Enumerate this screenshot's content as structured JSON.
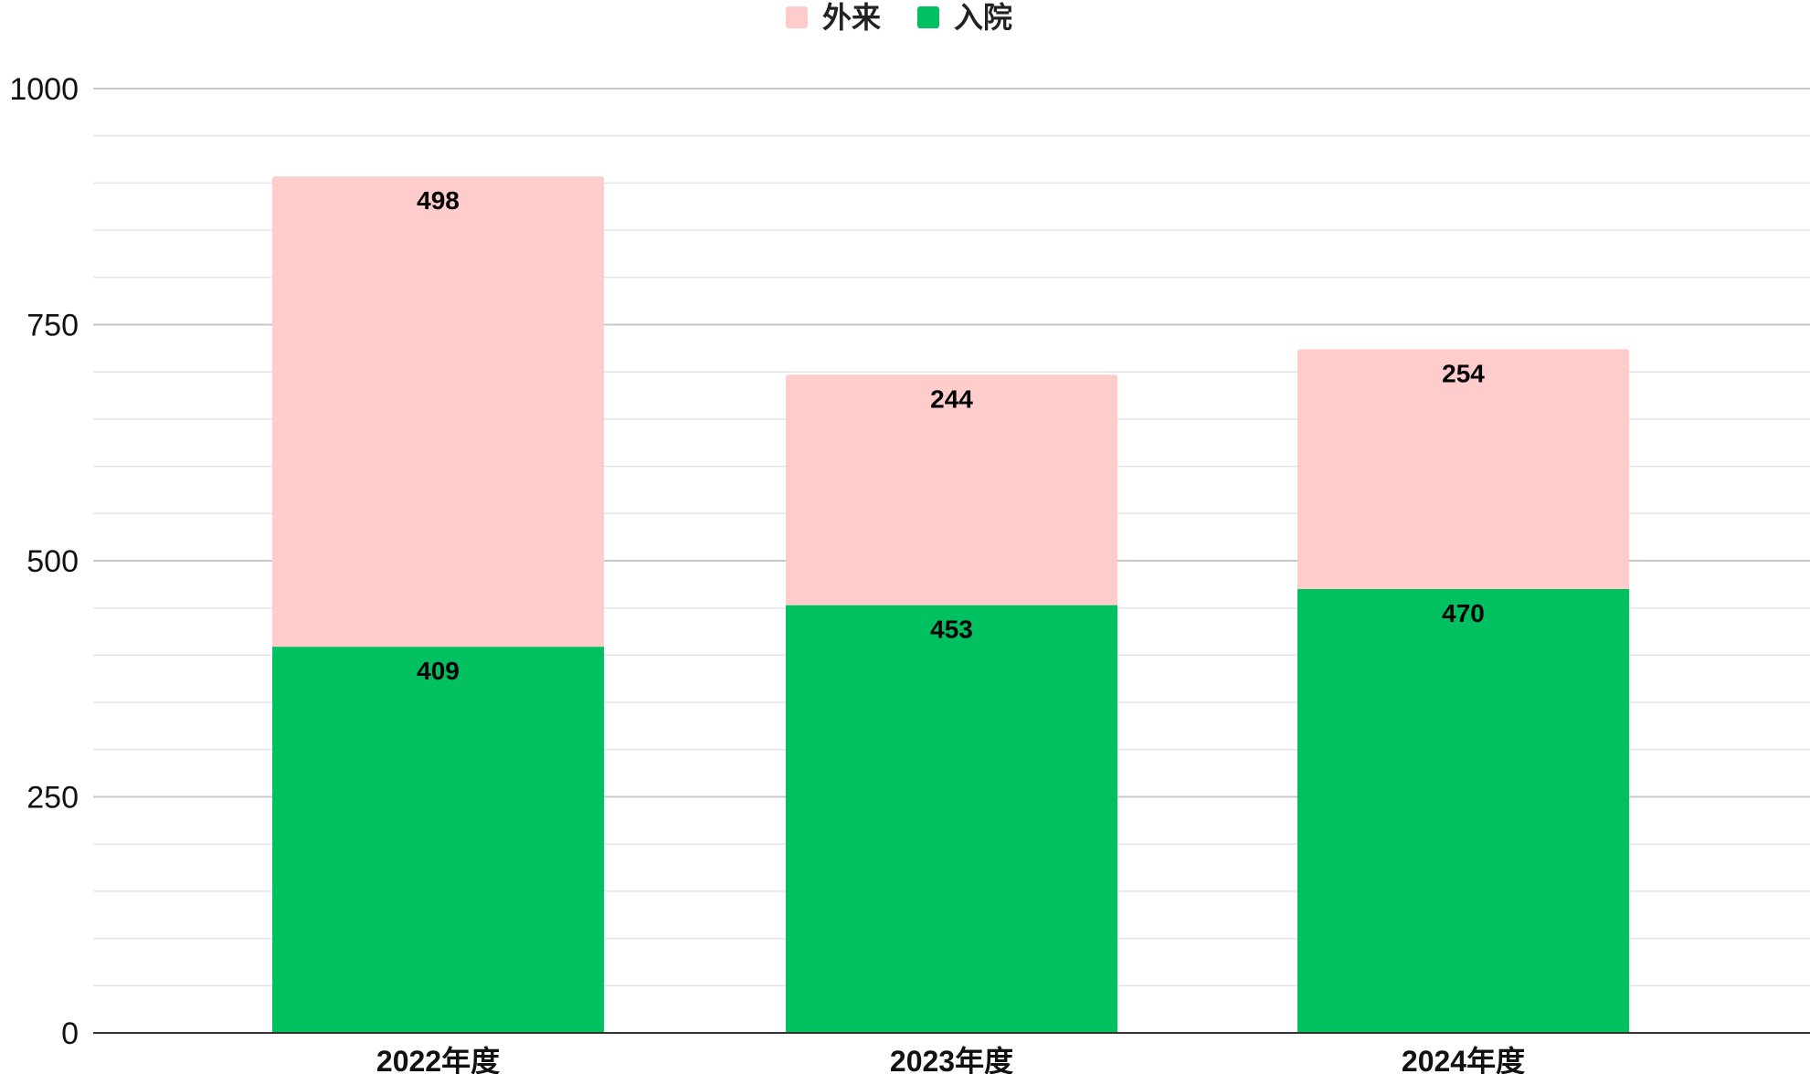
{
  "chart_data": {
    "type": "bar",
    "stacked": true,
    "categories": [
      "2022年度",
      "2023年度",
      "2024年度"
    ],
    "series": [
      {
        "name": "入院",
        "color": "#00c060",
        "values": [
          409,
          453,
          470
        ]
      },
      {
        "name": "外来",
        "color": "#ffcccc",
        "values": [
          498,
          244,
          254
        ]
      }
    ],
    "legend_order": [
      "外来",
      "入院"
    ],
    "legend_position": "top-center",
    "ylim": [
      0,
      1000
    ],
    "yticks": [
      0,
      250,
      500,
      750,
      1000
    ],
    "minor_grid_step": 50,
    "grid": true,
    "title": "",
    "xlabel": "",
    "ylabel": ""
  }
}
